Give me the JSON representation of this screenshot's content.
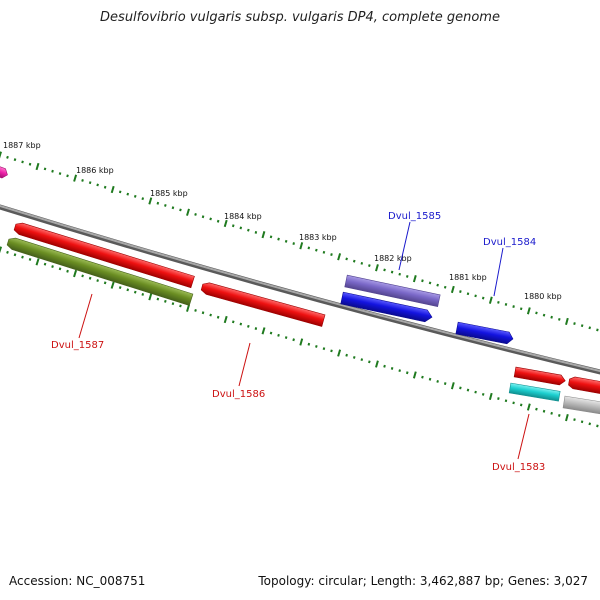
{
  "title": "Desulfovibrio vulgaris subsp. vulgaris DP4, complete genome",
  "footer": {
    "accession": "Accession: NC_008751",
    "stats": "Topology: circular; Length: 3,462,887 bp; Genes: 3,027"
  },
  "kbp_labels": [
    "1887 kbp",
    "1886 kbp",
    "1885 kbp",
    "1884 kbp",
    "1883 kbp",
    "1882 kbp",
    "1881 kbp",
    "1880 kbp"
  ],
  "gene_labels": {
    "dvul_1585": "Dvul_1585",
    "dvul_1584": "Dvul_1584",
    "dvul_1587": "Dvul_1587",
    "dvul_1586": "Dvul_1586",
    "dvul_1583": "Dvul_1583"
  },
  "colors": {
    "backbone": "#808080",
    "tick": "#1f7a1f",
    "red": "#ee1111",
    "olive": "#6b8e23",
    "blue": "#1414e0",
    "purple": "#7a68c8",
    "cyan": "#1ccfcf",
    "gray": "#bdbdbd",
    "magenta": "#ee22aa"
  }
}
